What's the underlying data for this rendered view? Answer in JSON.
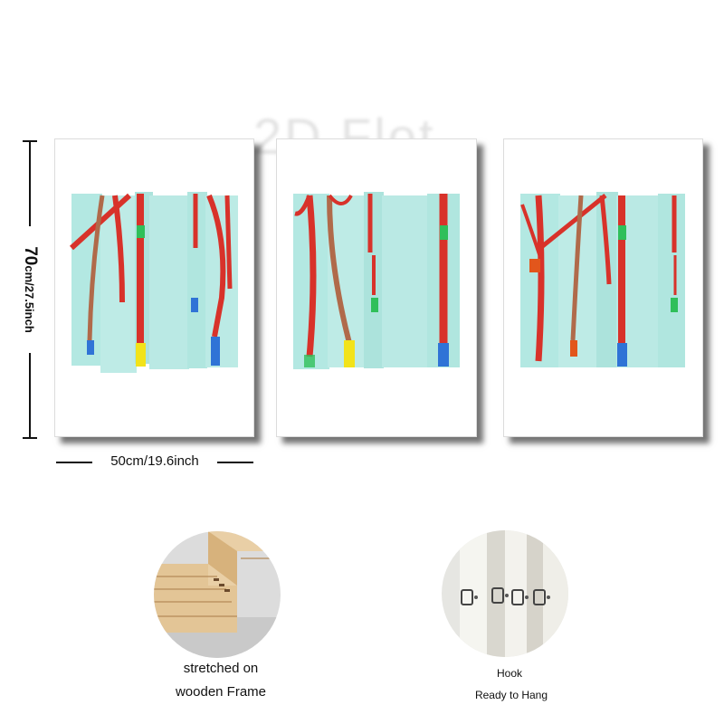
{
  "watermark": "2D Flot",
  "dimensions": {
    "height_big": "70",
    "height_small": "cm/27.5inch",
    "width_label": "50cm/19.6inch"
  },
  "features": [
    {
      "caption_line1": "stretched on",
      "caption_line2": "wooden Frame",
      "icon": "wooden-frame-corner"
    },
    {
      "caption_line1": "Hook",
      "caption_line2": "Ready to Hang",
      "icon": "hanging-hooks"
    }
  ],
  "colors": {
    "aqua_wash": "#a6e4dd",
    "trunk_red": "#d8322a",
    "trunk_brown": "#b06a4a",
    "accent_blue": "#2f73d6",
    "accent_yellow": "#f2e31a",
    "accent_green": "#2fbf5a",
    "accent_orange": "#e2561c"
  }
}
